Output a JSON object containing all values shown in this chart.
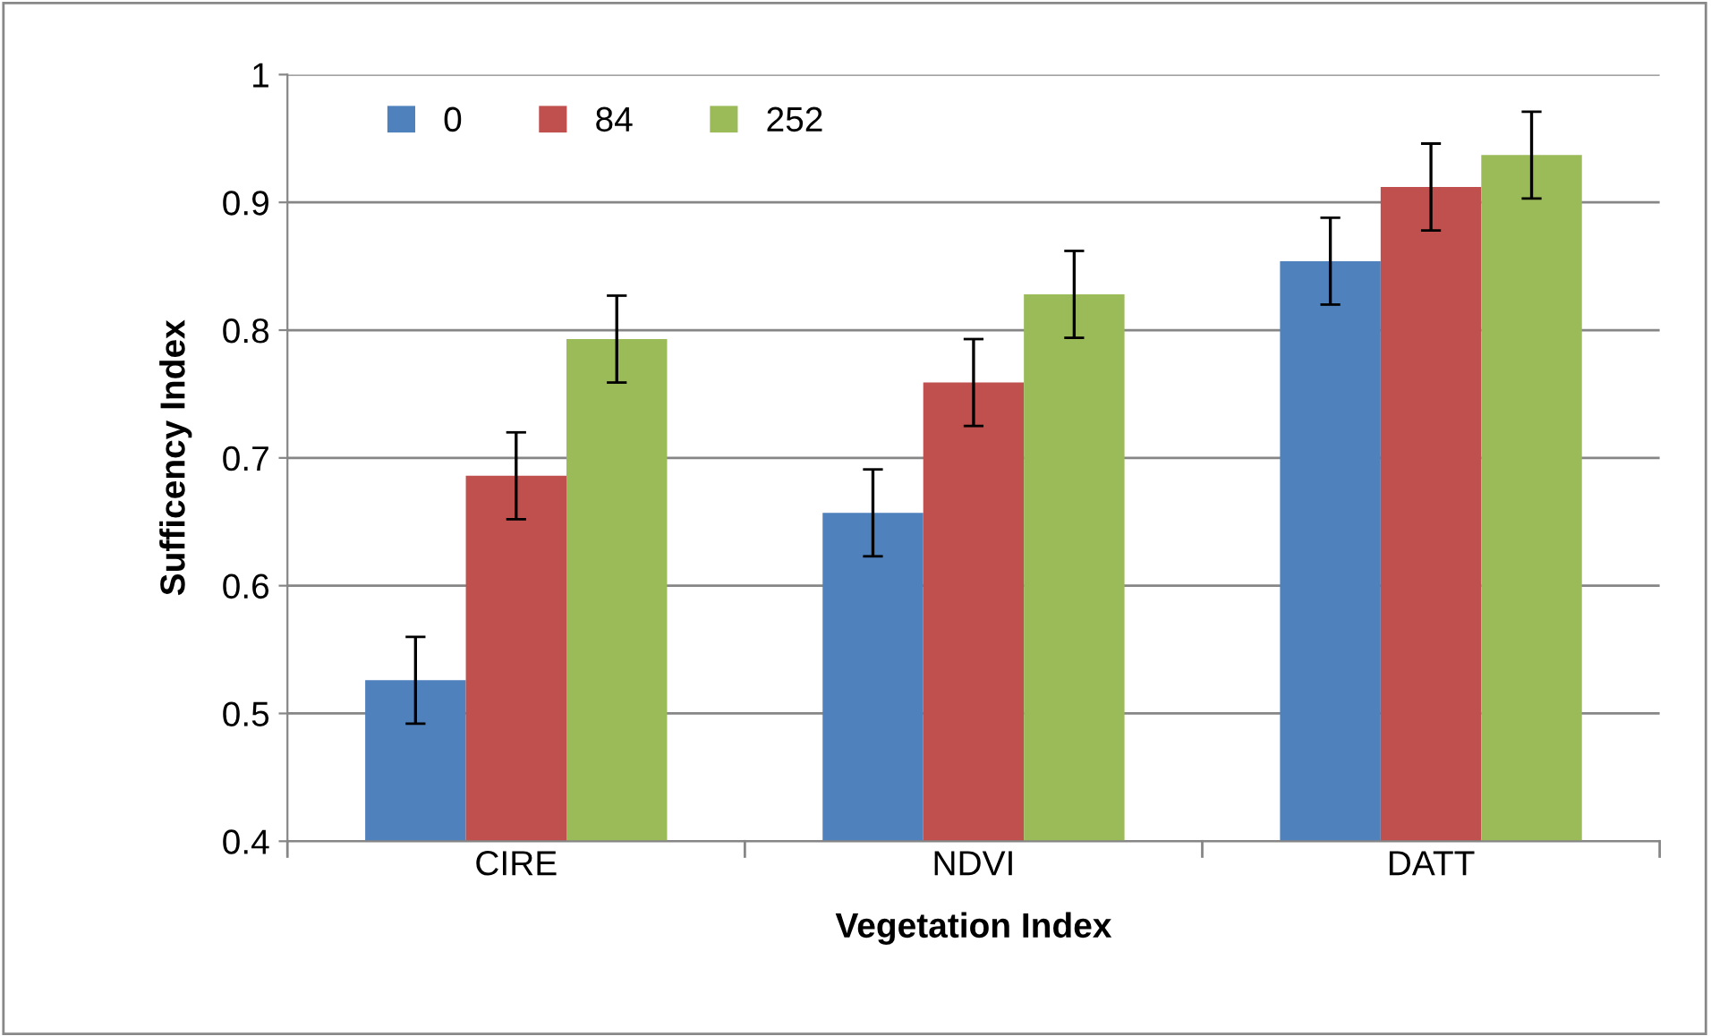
{
  "chart_data": {
    "type": "bar",
    "xlabel": "Vegetation Index",
    "ylabel": "Sufficency Index",
    "categories": [
      "CIRE",
      "NDVI",
      "DATT"
    ],
    "series": [
      {
        "name": "0",
        "color": "#4f81bd",
        "values": [
          0.526,
          0.657,
          0.854
        ],
        "errors": [
          0.034,
          0.034,
          0.034
        ]
      },
      {
        "name": "84",
        "color": "#c0504d",
        "values": [
          0.686,
          0.759,
          0.912
        ],
        "errors": [
          0.034,
          0.034,
          0.034
        ]
      },
      {
        "name": "252",
        "color": "#9bbb59",
        "values": [
          0.793,
          0.828,
          0.937
        ],
        "errors": [
          0.034,
          0.034,
          0.034
        ]
      }
    ],
    "ylim": [
      0.4,
      1
    ],
    "yticks": [
      0.4,
      0.5,
      0.6,
      0.7,
      0.8,
      0.9,
      1
    ],
    "grid": "y",
    "legend": "top left"
  }
}
